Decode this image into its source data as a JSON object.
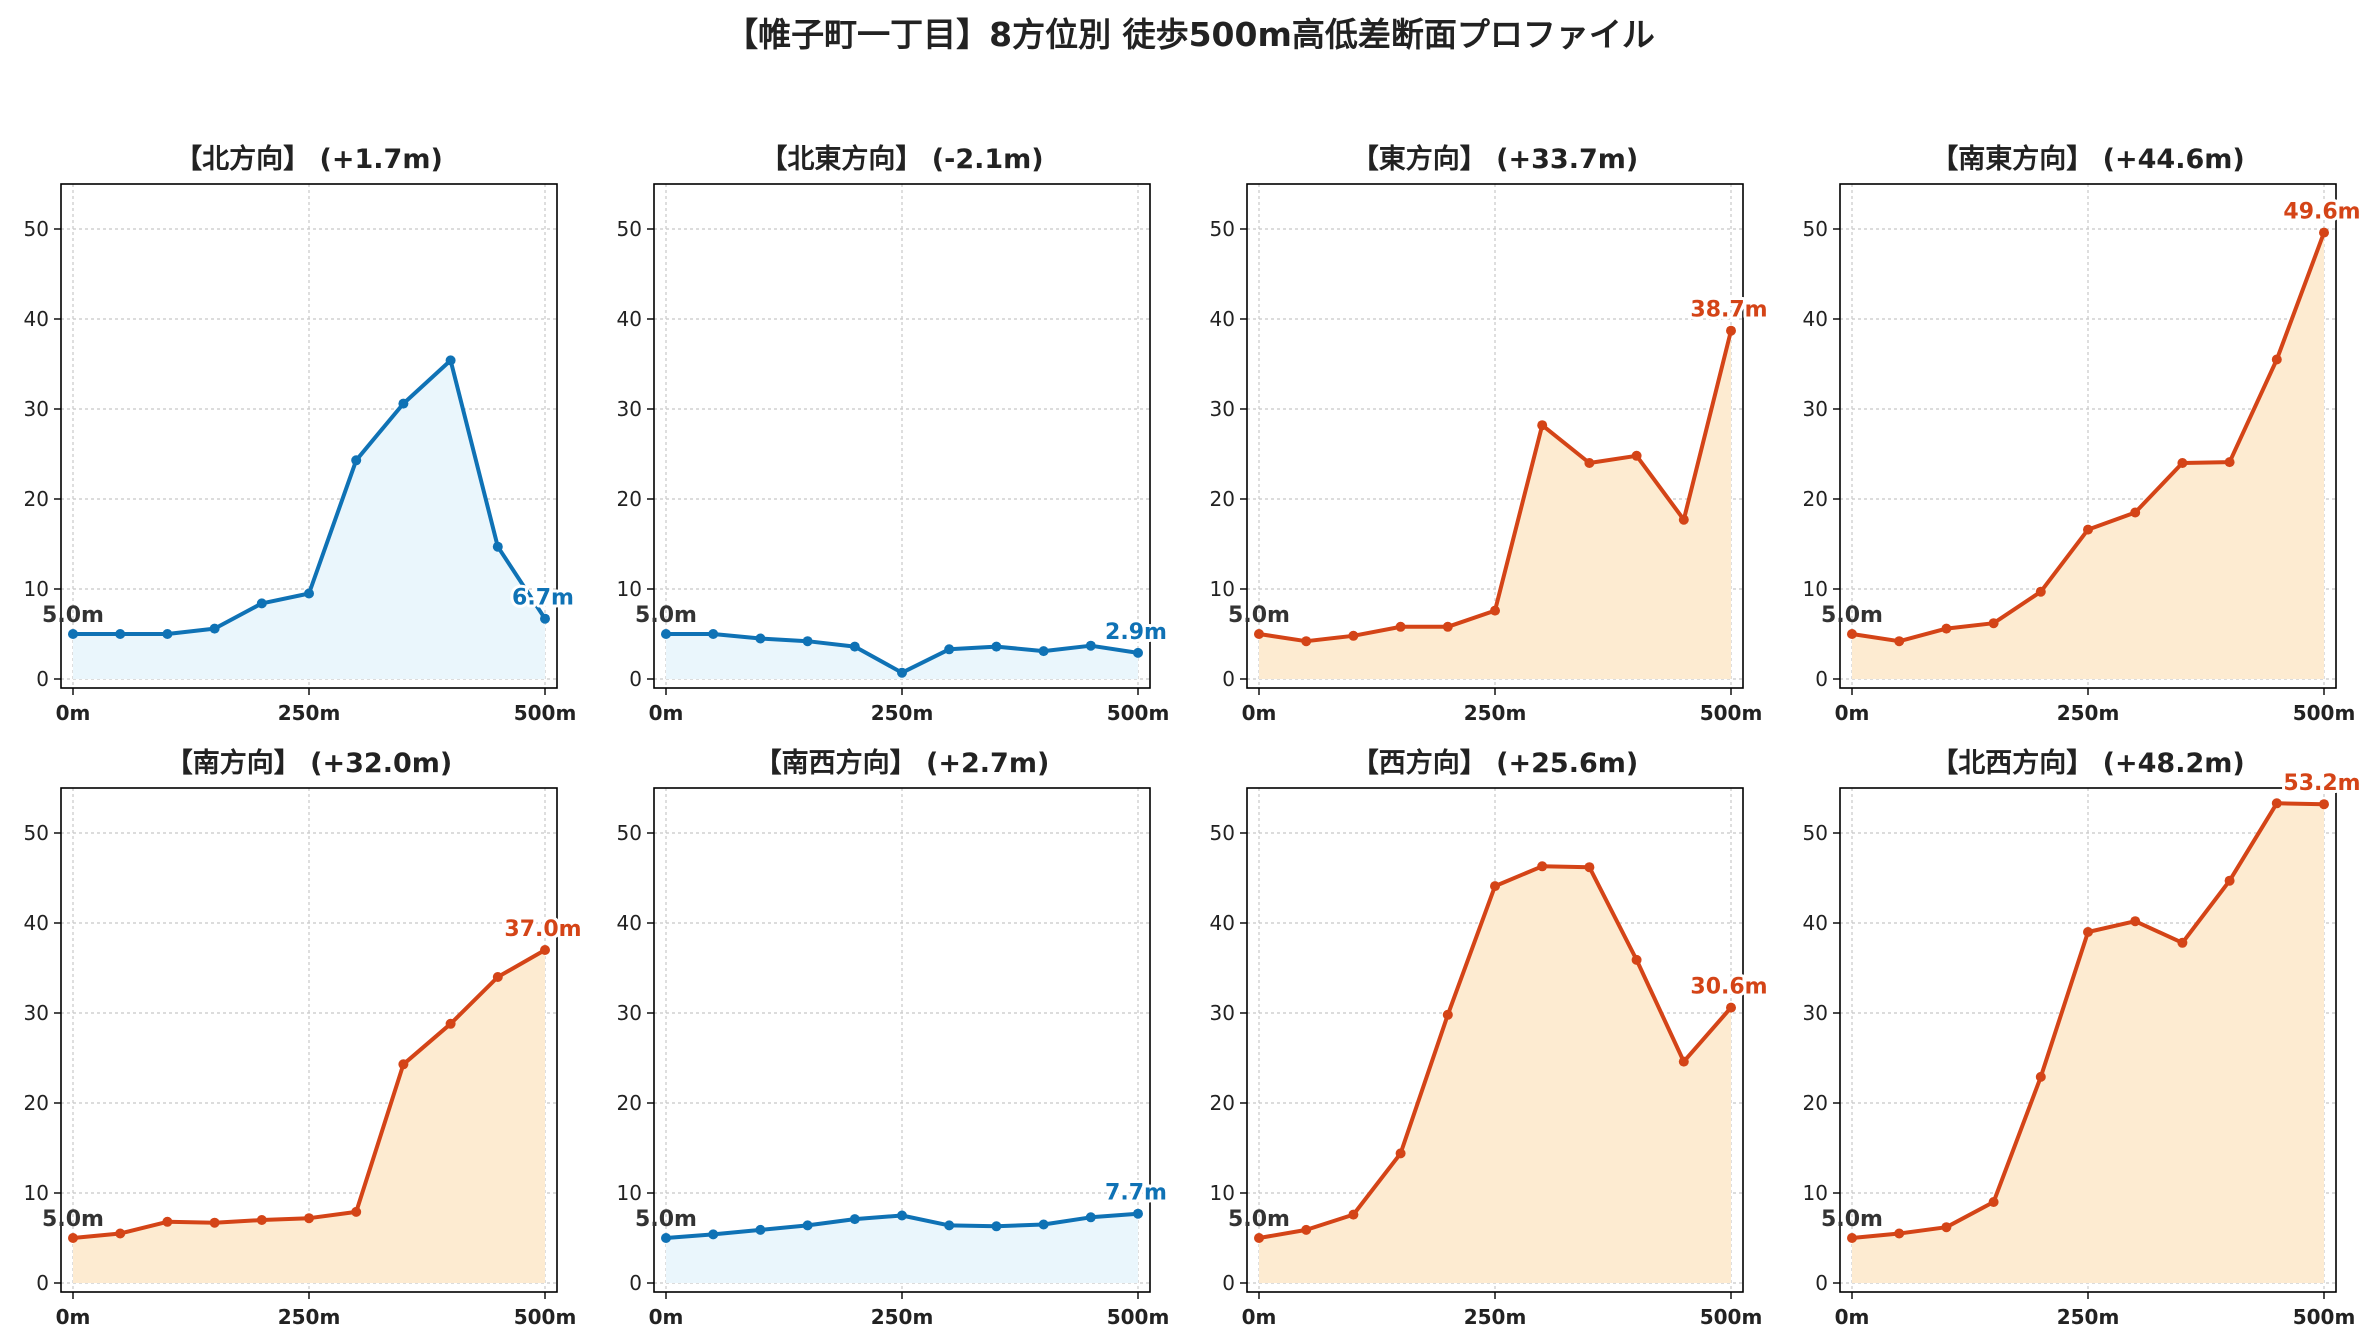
{
  "figure": {
    "title": "【帷子町一丁目】8方位別 徒歩500m高低差断面プロファイル"
  },
  "colors": {
    "down_line": "#0f72b5",
    "down_fill": "#eaf6fc",
    "up_line": "#d44417",
    "up_fill": "#fdebd1",
    "grid": "#c8c8c8",
    "start_label": "#333333"
  },
  "chart_data": [
    {
      "type": "area",
      "title": "【北方向】 (+1.7m)",
      "x": [
        0,
        50,
        100,
        150,
        200,
        250,
        300,
        350,
        400,
        450,
        500
      ],
      "values": [
        5.0,
        5.0,
        5.0,
        5.6,
        8.4,
        9.5,
        24.3,
        30.6,
        35.4,
        14.7,
        6.7
      ],
      "xticks": [
        "0m",
        "250m",
        "500m"
      ],
      "yticks": [
        0,
        10,
        20,
        30,
        40,
        50
      ],
      "ylim": [
        -1,
        55
      ],
      "start_label": "5.0m",
      "end_label": "6.7m",
      "trend": "down",
      "grid": true
    },
    {
      "type": "area",
      "title": "【北東方向】 (-2.1m)",
      "x": [
        0,
        50,
        100,
        150,
        200,
        250,
        300,
        350,
        400,
        450,
        500
      ],
      "values": [
        5.0,
        5.0,
        4.5,
        4.2,
        3.6,
        0.7,
        3.3,
        3.6,
        3.1,
        3.7,
        2.9
      ],
      "xticks": [
        "0m",
        "250m",
        "500m"
      ],
      "yticks": [
        0,
        10,
        20,
        30,
        40,
        50
      ],
      "ylim": [
        -1,
        55
      ],
      "start_label": "5.0m",
      "end_label": "2.9m",
      "trend": "down",
      "grid": true
    },
    {
      "type": "area",
      "title": "【東方向】 (+33.7m)",
      "x": [
        0,
        50,
        100,
        150,
        200,
        250,
        300,
        350,
        400,
        450,
        500
      ],
      "values": [
        5.0,
        4.2,
        4.8,
        5.8,
        5.8,
        7.6,
        28.2,
        24.0,
        24.8,
        17.7,
        38.7
      ],
      "xticks": [
        "0m",
        "250m",
        "500m"
      ],
      "yticks": [
        0,
        10,
        20,
        30,
        40,
        50
      ],
      "ylim": [
        -1,
        55
      ],
      "start_label": "5.0m",
      "end_label": "38.7m",
      "trend": "up",
      "grid": true
    },
    {
      "type": "area",
      "title": "【南東方向】 (+44.6m)",
      "x": [
        0,
        50,
        100,
        150,
        200,
        250,
        300,
        350,
        400,
        450,
        500
      ],
      "values": [
        5.0,
        4.2,
        5.6,
        6.2,
        9.7,
        16.6,
        18.5,
        24.0,
        24.1,
        35.5,
        49.6
      ],
      "xticks": [
        "0m",
        "250m",
        "500m"
      ],
      "yticks": [
        0,
        10,
        20,
        30,
        40,
        50
      ],
      "ylim": [
        -1,
        55
      ],
      "start_label": "5.0m",
      "end_label": "49.6m",
      "trend": "up",
      "grid": true
    },
    {
      "type": "area",
      "title": "【南方向】 (+32.0m)",
      "x": [
        0,
        50,
        100,
        150,
        200,
        250,
        300,
        350,
        400,
        450,
        500
      ],
      "values": [
        5.0,
        5.5,
        6.8,
        6.7,
        7.0,
        7.2,
        7.9,
        24.3,
        28.8,
        34.0,
        37.0
      ],
      "xticks": [
        "0m",
        "250m",
        "500m"
      ],
      "yticks": [
        0,
        10,
        20,
        30,
        40,
        50
      ],
      "ylim": [
        -1,
        55
      ],
      "start_label": "5.0m",
      "end_label": "37.0m",
      "trend": "up",
      "grid": true
    },
    {
      "type": "area",
      "title": "【南西方向】 (+2.7m)",
      "x": [
        0,
        50,
        100,
        150,
        200,
        250,
        300,
        350,
        400,
        450,
        500
      ],
      "values": [
        5.0,
        5.4,
        5.9,
        6.4,
        7.1,
        7.5,
        6.4,
        6.3,
        6.5,
        7.3,
        7.7
      ],
      "xticks": [
        "0m",
        "250m",
        "500m"
      ],
      "yticks": [
        0,
        10,
        20,
        30,
        40,
        50
      ],
      "ylim": [
        -1,
        55
      ],
      "start_label": "5.0m",
      "end_label": "7.7m",
      "trend": "down",
      "grid": true
    },
    {
      "type": "area",
      "title": "【西方向】 (+25.6m)",
      "x": [
        0,
        50,
        100,
        150,
        200,
        250,
        300,
        350,
        400,
        450,
        500
      ],
      "values": [
        5.0,
        5.9,
        7.6,
        14.4,
        29.8,
        44.1,
        46.3,
        46.2,
        35.9,
        24.6,
        30.6
      ],
      "xticks": [
        "0m",
        "250m",
        "500m"
      ],
      "yticks": [
        0,
        10,
        20,
        30,
        40,
        50
      ],
      "ylim": [
        -1,
        55
      ],
      "start_label": "5.0m",
      "end_label": "30.6m",
      "trend": "up",
      "grid": true
    },
    {
      "type": "area",
      "title": "【北西方向】 (+48.2m)",
      "x": [
        0,
        50,
        100,
        150,
        200,
        250,
        300,
        350,
        400,
        450,
        500
      ],
      "values": [
        5.0,
        5.5,
        6.2,
        9.0,
        22.9,
        39.0,
        40.2,
        37.8,
        44.7,
        53.3,
        53.2
      ],
      "xticks": [
        "0m",
        "250m",
        "500m"
      ],
      "yticks": [
        0,
        10,
        20,
        30,
        40,
        50
      ],
      "ylim": [
        -1,
        55
      ],
      "start_label": "5.0m",
      "end_label": "53.2m",
      "trend": "up",
      "grid": true
    }
  ]
}
